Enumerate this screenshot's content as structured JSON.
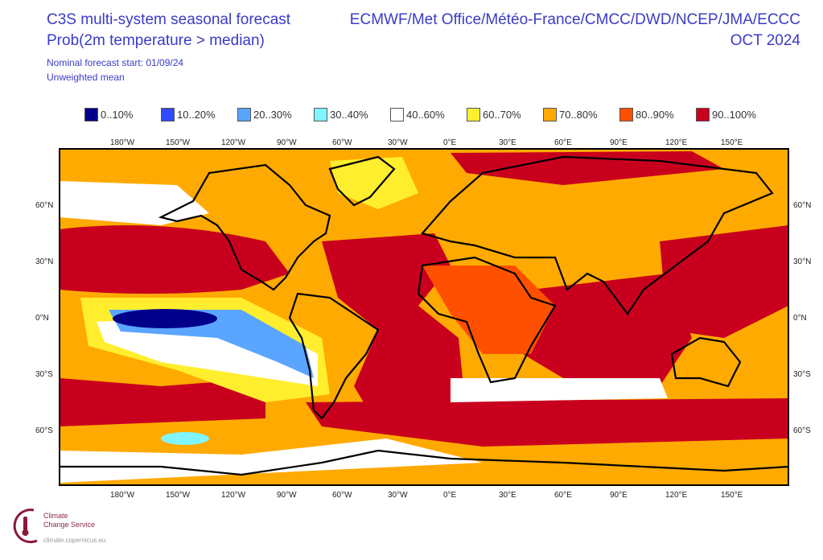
{
  "header": {
    "title": "C3S multi-system seasonal forecast",
    "subtitle": "Prob(2m temperature > median)",
    "forecast_start": "Nominal forecast start: 01/09/24",
    "mean_type": "Unweighted mean",
    "systems": "ECMWF/Met Office/Météo-France/CMCC/DWD/NCEP/JMA/ECCC",
    "valid_month": "OCT 2024"
  },
  "legend": [
    {
      "label": "0..10%",
      "color": "#00008b"
    },
    {
      "label": "10..20%",
      "color": "#2f4bff"
    },
    {
      "label": "20..30%",
      "color": "#5aa5ff"
    },
    {
      "label": "30..40%",
      "color": "#7ff5ff"
    },
    {
      "label": "40..60%",
      "color": "#ffffff"
    },
    {
      "label": "60..70%",
      "color": "#ffee2e"
    },
    {
      "label": "70..80%",
      "color": "#ffaa00"
    },
    {
      "label": "80..90%",
      "color": "#ff5000"
    },
    {
      "label": "90..100%",
      "color": "#c8001e"
    }
  ],
  "map": {
    "lon_labels": [
      "180°W",
      "150°W",
      "120°W",
      "90°W",
      "60°W",
      "30°W",
      "0°E",
      "30°E",
      "60°E",
      "90°E",
      "120°E",
      "150°E"
    ],
    "lat_labels": [
      "60°N",
      "30°N",
      "0°N",
      "30°S",
      "60°S"
    ]
  },
  "logo": {
    "line1": "Climate",
    "line2": "Change Service",
    "url": "climate.copernicus.eu"
  }
}
